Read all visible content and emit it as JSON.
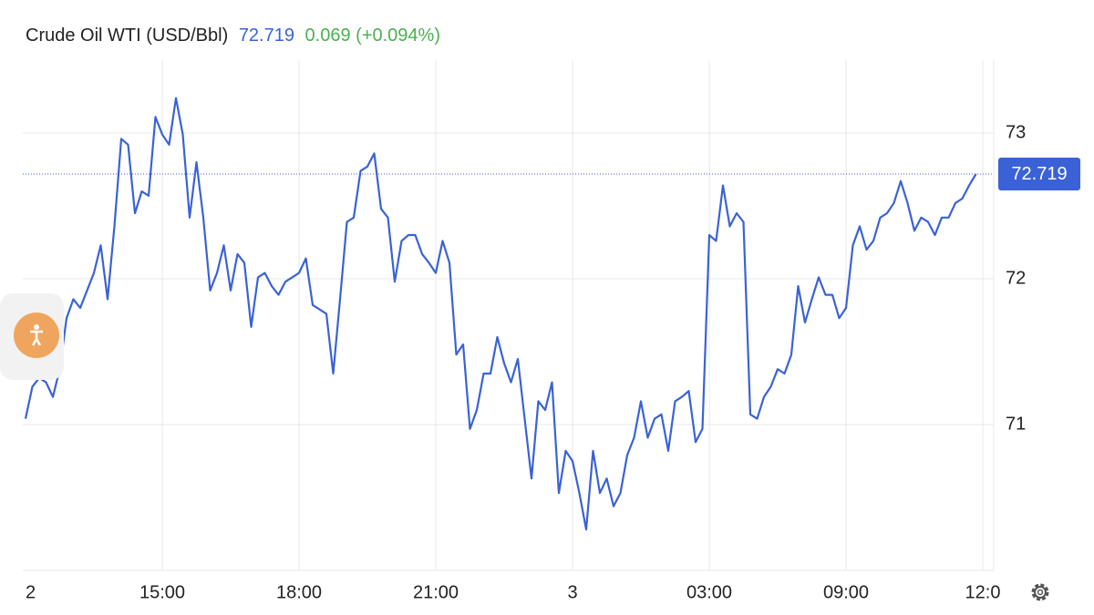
{
  "chart_data": {
    "type": "line",
    "title": "Crude Oil WTI (USD/Bbl)",
    "last": 72.719,
    "change": "0.069 (+0.094%)",
    "xtick_labels": [
      "2",
      "15:00",
      "18:00",
      "21:00",
      "3",
      "03:00",
      "09:00",
      "12:0"
    ],
    "series": [
      {
        "name": "Crude Oil WTI",
        "color": "#3a62d6",
        "values": [
          71.04,
          71.26,
          71.32,
          71.29,
          71.19,
          71.38,
          71.73,
          71.86,
          71.8,
          71.92,
          72.04,
          72.23,
          71.86,
          72.36,
          72.96,
          72.92,
          72.45,
          72.6,
          72.57,
          73.11,
          72.99,
          72.92,
          73.24,
          72.99,
          72.42,
          72.8,
          72.42,
          71.92,
          72.04,
          72.23,
          71.92,
          72.17,
          72.11,
          71.67,
          72.01,
          72.04,
          71.95,
          71.89,
          71.98,
          72.01,
          72.04,
          72.14,
          71.82,
          71.79,
          71.76,
          71.35,
          71.86,
          72.39,
          72.42,
          72.74,
          72.77,
          72.86,
          72.48,
          72.42,
          71.98,
          72.26,
          72.3,
          72.3,
          72.17,
          72.11,
          72.04,
          72.26,
          72.11,
          71.48,
          71.55,
          70.97,
          71.1,
          71.35,
          71.35,
          71.6,
          71.42,
          71.29,
          71.45,
          71.04,
          70.63,
          71.16,
          71.1,
          71.29,
          70.53,
          70.82,
          70.75,
          70.53,
          70.28,
          70.82,
          70.53,
          70.63,
          70.44,
          70.53,
          70.79,
          70.91,
          71.16,
          70.91,
          71.04,
          71.07,
          70.82,
          71.16,
          71.19,
          71.23,
          70.88,
          70.97,
          72.3,
          72.26,
          72.64,
          72.36,
          72.45,
          72.39,
          71.07,
          71.04,
          71.19,
          71.26,
          71.38,
          71.35,
          71.48,
          71.95,
          71.7,
          71.86,
          72.01,
          71.89,
          71.89,
          71.73,
          71.8,
          72.23,
          72.36,
          72.2,
          72.26,
          72.42,
          72.45,
          72.52,
          72.67,
          72.52,
          72.33,
          72.42,
          72.39,
          72.3,
          72.42,
          72.42,
          72.52,
          72.55,
          72.64,
          72.719
        ]
      }
    ],
    "ylim": [
      70,
      73.5
    ],
    "yticks": [
      71,
      72,
      73
    ],
    "grid": true
  }
}
